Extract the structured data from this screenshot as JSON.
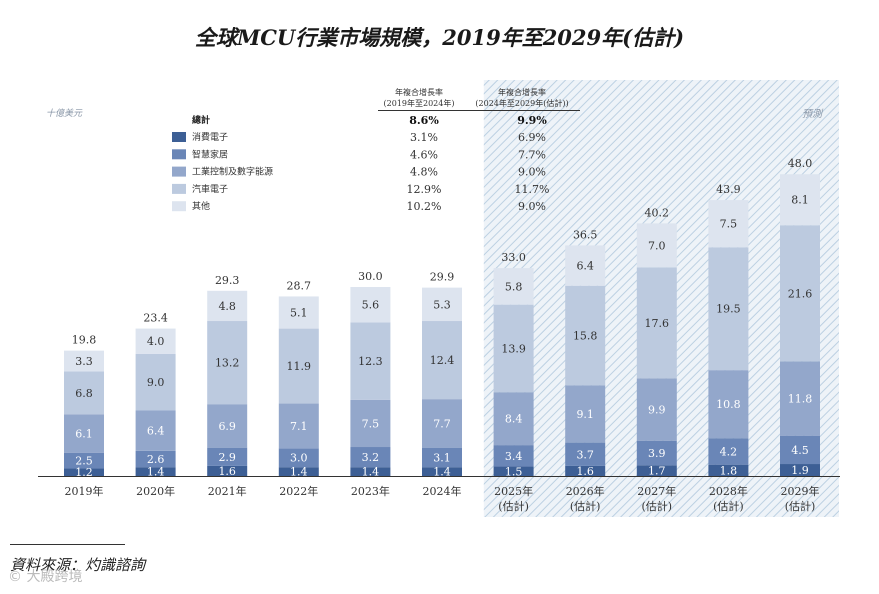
{
  "title": "全球MCU行業市場規模，2019年至2029年(估計)",
  "source": "資料來源：灼識諮詢",
  "watermark": "© 大殿跨境",
  "chart_data": {
    "type": "bar",
    "stacked": true,
    "unit_label": "十億美元",
    "forecast_label": "預測",
    "categories": [
      "2019年",
      "2020年",
      "2021年",
      "2022年",
      "2023年",
      "2024年",
      "2025年",
      "2026年",
      "2027年",
      "2028年",
      "2029年"
    ],
    "category_notes": [
      "",
      "",
      "",
      "",
      "",
      "",
      "(估計)",
      "(估計)",
      "(估計)",
      "(估計)",
      "(估計)"
    ],
    "forecast_start_index": 6,
    "totals": [
      19.8,
      23.4,
      29.3,
      28.7,
      30.0,
      29.9,
      33.0,
      36.5,
      40.2,
      43.9,
      48.0
    ],
    "series": [
      {
        "name": "消費電子",
        "color": "#3d5f95",
        "values": [
          1.2,
          1.4,
          1.6,
          1.4,
          1.4,
          1.4,
          1.5,
          1.6,
          1.7,
          1.8,
          1.9
        ]
      },
      {
        "name": "智慧家居",
        "color": "#6a86b7",
        "values": [
          2.5,
          2.6,
          2.9,
          3.0,
          3.2,
          3.1,
          3.4,
          3.7,
          3.9,
          4.2,
          4.5
        ]
      },
      {
        "name": "工業控制及數字能源",
        "color": "#93a7cb",
        "values": [
          6.1,
          6.4,
          6.9,
          7.1,
          7.5,
          7.7,
          8.4,
          9.1,
          9.9,
          10.8,
          11.8
        ]
      },
      {
        "name": "汽車電子",
        "color": "#bccadf",
        "values": [
          6.8,
          9.0,
          13.2,
          11.9,
          12.3,
          12.4,
          13.9,
          15.8,
          17.6,
          19.5,
          21.6
        ]
      },
      {
        "name": "其他",
        "color": "#dde4ef",
        "values": [
          3.3,
          4.0,
          4.8,
          5.1,
          5.6,
          5.3,
          5.8,
          6.4,
          7.0,
          7.5,
          8.1
        ]
      }
    ],
    "cagr_table": {
      "header_1": [
        "年複合增長率",
        "(2019年至2024年)"
      ],
      "header_2": [
        "年複合增長率",
        "(2024年至2029年(估計))"
      ],
      "total_label": "總計",
      "total_values": [
        "8.6%",
        "9.9%"
      ],
      "rows": [
        {
          "label": "消費電子",
          "values": [
            "3.1%",
            "6.9%"
          ]
        },
        {
          "label": "智慧家居",
          "values": [
            "4.6%",
            "7.7%"
          ]
        },
        {
          "label": "工業控制及數字能源",
          "values": [
            "4.8%",
            "9.0%"
          ]
        },
        {
          "label": "汽車電子",
          "values": [
            "12.9%",
            "11.7%"
          ]
        },
        {
          "label": "其他",
          "values": [
            "10.2%",
            "9.0%"
          ]
        }
      ]
    },
    "colors": {
      "text_on_light": "#333333",
      "text_on_dark": "#ffffff",
      "forecast_bg": "#d6e3ef"
    }
  }
}
